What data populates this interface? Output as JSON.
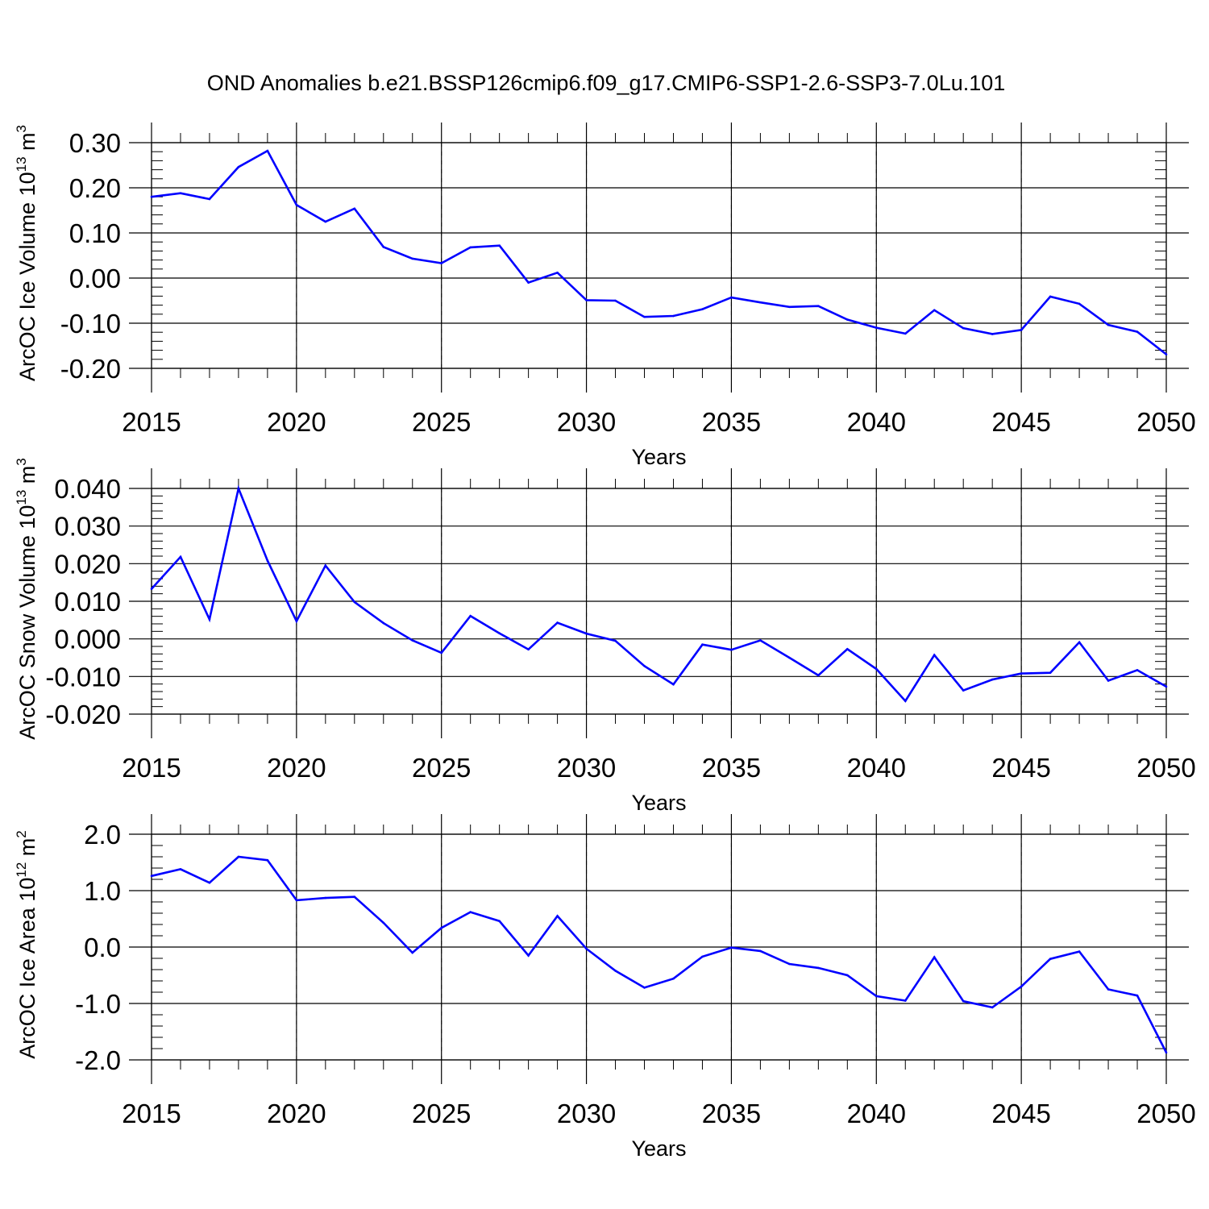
{
  "title": "OND Anomalies b.e21.BSSP126cmip6.f09_g17.CMIP6-SSP1-2.6-SSP3-7.0Lu.101",
  "colors": {
    "line": "#0000ff",
    "grid": "#888888",
    "axis": "#000000"
  },
  "chart_data": [
    {
      "type": "line",
      "ylabel": "ArcOC Ice Volume 10",
      "ylabel_exp": "13",
      "ylabel_unit": " m",
      "ylabel_unit_exp": "3",
      "xlabel": "Years",
      "xlim": [
        2015,
        2050
      ],
      "ylim": [
        -0.2,
        0.3
      ],
      "yticks": [
        -0.2,
        -0.1,
        0.0,
        0.1,
        0.2,
        0.3
      ],
      "ytick_labels": [
        "-0.20",
        "-0.10",
        "0.00",
        "0.10",
        "0.20",
        "0.30"
      ],
      "xticks": [
        2015,
        2020,
        2025,
        2030,
        2035,
        2040,
        2045,
        2050
      ],
      "xtick_labels": [
        "2015",
        "2020",
        "2025",
        "2030",
        "2035",
        "2040",
        "2045",
        "2050"
      ],
      "x": [
        2015,
        2016,
        2017,
        2018,
        2019,
        2020,
        2021,
        2022,
        2023,
        2024,
        2025,
        2026,
        2027,
        2028,
        2029,
        2030,
        2031,
        2032,
        2033,
        2034,
        2035,
        2036,
        2037,
        2038,
        2039,
        2040,
        2041,
        2042,
        2043,
        2044,
        2045,
        2046,
        2047,
        2048,
        2049,
        2050
      ],
      "values": [
        0.18,
        0.188,
        0.175,
        0.246,
        0.282,
        0.162,
        0.125,
        0.154,
        0.069,
        0.043,
        0.033,
        0.068,
        0.072,
        -0.01,
        0.012,
        -0.049,
        -0.05,
        -0.086,
        -0.084,
        -0.069,
        -0.043,
        -0.054,
        -0.064,
        -0.062,
        -0.092,
        -0.11,
        -0.123,
        -0.071,
        -0.111,
        -0.124,
        -0.115,
        -0.041,
        -0.057,
        -0.104,
        -0.119,
        -0.169
      ]
    },
    {
      "type": "line",
      "ylabel": "ArcOC Snow Volume 10",
      "ylabel_exp": "13",
      "ylabel_unit": " m",
      "ylabel_unit_exp": "3",
      "xlabel": "Years",
      "xlim": [
        2015,
        2050
      ],
      "ylim": [
        -0.02,
        0.04
      ],
      "yticks": [
        -0.02,
        -0.01,
        0.0,
        0.01,
        0.02,
        0.03,
        0.04
      ],
      "ytick_labels": [
        "-0.020",
        "-0.010",
        "0.000",
        "0.010",
        "0.020",
        "0.030",
        "0.040"
      ],
      "xticks": [
        2015,
        2020,
        2025,
        2030,
        2035,
        2040,
        2045,
        2050
      ],
      "xtick_labels": [
        "2015",
        "2020",
        "2025",
        "2030",
        "2035",
        "2040",
        "2045",
        "2050"
      ],
      "x": [
        2015,
        2016,
        2017,
        2018,
        2019,
        2020,
        2021,
        2022,
        2023,
        2024,
        2025,
        2026,
        2027,
        2028,
        2029,
        2030,
        2031,
        2032,
        2033,
        2034,
        2035,
        2036,
        2037,
        2038,
        2039,
        2040,
        2041,
        2042,
        2043,
        2044,
        2045,
        2046,
        2047,
        2048,
        2049,
        2050
      ],
      "values": [
        0.0133,
        0.0218,
        0.0052,
        0.04,
        0.0208,
        0.0047,
        0.0195,
        0.0098,
        0.0042,
        -0.0004,
        -0.0037,
        0.0061,
        0.0015,
        -0.0028,
        0.0043,
        0.0014,
        -0.0005,
        -0.0072,
        -0.0121,
        -0.0015,
        -0.0029,
        -0.0004,
        -0.005,
        -0.0097,
        -0.0027,
        -0.008,
        -0.0165,
        -0.0043,
        -0.0137,
        -0.0108,
        -0.0092,
        -0.009,
        -0.0009,
        -0.0111,
        -0.0083,
        -0.0127
      ]
    },
    {
      "type": "line",
      "ylabel": "ArcOC Ice Area 10",
      "ylabel_exp": "12",
      "ylabel_unit": " m",
      "ylabel_unit_exp": "2",
      "xlabel": "Years",
      "xlim": [
        2015,
        2050
      ],
      "ylim": [
        -2.0,
        2.0
      ],
      "yticks": [
        -2.0,
        -1.0,
        0.0,
        1.0,
        2.0
      ],
      "ytick_labels": [
        "-2.0",
        "-1.0",
        "0.0",
        "1.0",
        "2.0"
      ],
      "xticks": [
        2015,
        2020,
        2025,
        2030,
        2035,
        2040,
        2045,
        2050
      ],
      "xtick_labels": [
        "2015",
        "2020",
        "2025",
        "2030",
        "2035",
        "2040",
        "2045",
        "2050"
      ],
      "x": [
        2015,
        2016,
        2017,
        2018,
        2019,
        2020,
        2021,
        2022,
        2023,
        2024,
        2025,
        2026,
        2027,
        2028,
        2029,
        2030,
        2031,
        2032,
        2033,
        2034,
        2035,
        2036,
        2037,
        2038,
        2039,
        2040,
        2041,
        2042,
        2043,
        2044,
        2045,
        2046,
        2047,
        2048,
        2049,
        2050
      ],
      "values": [
        1.26,
        1.38,
        1.14,
        1.6,
        1.54,
        0.83,
        0.87,
        0.89,
        0.43,
        -0.1,
        0.34,
        0.62,
        0.46,
        -0.15,
        0.55,
        -0.03,
        -0.42,
        -0.72,
        -0.56,
        -0.17,
        -0.01,
        -0.07,
        -0.3,
        -0.37,
        -0.5,
        -0.87,
        -0.95,
        -0.18,
        -0.96,
        -1.07,
        -0.7,
        -0.21,
        -0.08,
        -0.75,
        -0.86,
        -1.87
      ]
    }
  ]
}
